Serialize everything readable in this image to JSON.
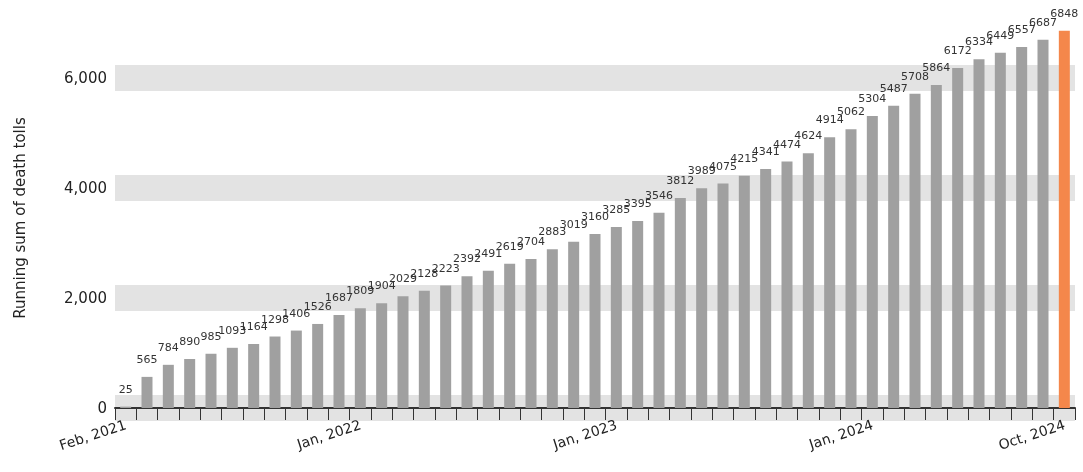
{
  "chart_data": {
    "type": "bar",
    "ylabel": "Running sum of death tolls",
    "categories": [
      "Feb, 2021",
      null,
      null,
      null,
      null,
      null,
      null,
      null,
      null,
      null,
      null,
      "Jan, 2022",
      null,
      null,
      null,
      null,
      null,
      null,
      null,
      null,
      null,
      null,
      null,
      "Jan, 2023",
      null,
      null,
      null,
      null,
      null,
      null,
      null,
      null,
      null,
      null,
      null,
      "Jan, 2024",
      null,
      null,
      null,
      null,
      null,
      null,
      null,
      null,
      "Oct, 2024"
    ],
    "values": [
      25,
      565,
      784,
      890,
      985,
      1093,
      1164,
      1298,
      1406,
      1526,
      1687,
      1809,
      1904,
      2029,
      2128,
      2223,
      2392,
      2491,
      2619,
      2704,
      2883,
      3019,
      3160,
      3285,
      3395,
      3546,
      3812,
      3989,
      4075,
      4215,
      4341,
      4474,
      4624,
      4914,
      5062,
      5304,
      5487,
      5708,
      5864,
      6172,
      6334,
      6449,
      6557,
      6687,
      6848
    ],
    "colors": [
      "#a0a0a0",
      "#a0a0a0",
      "#a0a0a0",
      "#a0a0a0",
      "#a0a0a0",
      "#a0a0a0",
      "#a0a0a0",
      "#a0a0a0",
      "#a0a0a0",
      "#a0a0a0",
      "#a0a0a0",
      "#a0a0a0",
      "#a0a0a0",
      "#a0a0a0",
      "#a0a0a0",
      "#a0a0a0",
      "#a0a0a0",
      "#a0a0a0",
      "#a0a0a0",
      "#a0a0a0",
      "#a0a0a0",
      "#a0a0a0",
      "#a0a0a0",
      "#a0a0a0",
      "#a0a0a0",
      "#a0a0a0",
      "#a0a0a0",
      "#a0a0a0",
      "#a0a0a0",
      "#a0a0a0",
      "#a0a0a0",
      "#a0a0a0",
      "#a0a0a0",
      "#a0a0a0",
      "#a0a0a0",
      "#a0a0a0",
      "#a0a0a0",
      "#a0a0a0",
      "#a0a0a0",
      "#a0a0a0",
      "#a0a0a0",
      "#a0a0a0",
      "#a0a0a0",
      "#a0a0a0",
      "#f4874b"
    ],
    "ylim": [
      0,
      6900
    ],
    "yticks": [
      0,
      {
        "value": 2000,
        "label": "2,000"
      },
      {
        "value": 4000,
        "label": "4,000"
      },
      {
        "value": 6000,
        "label": "6,000"
      }
    ],
    "grid": "y",
    "data_labels": true
  }
}
